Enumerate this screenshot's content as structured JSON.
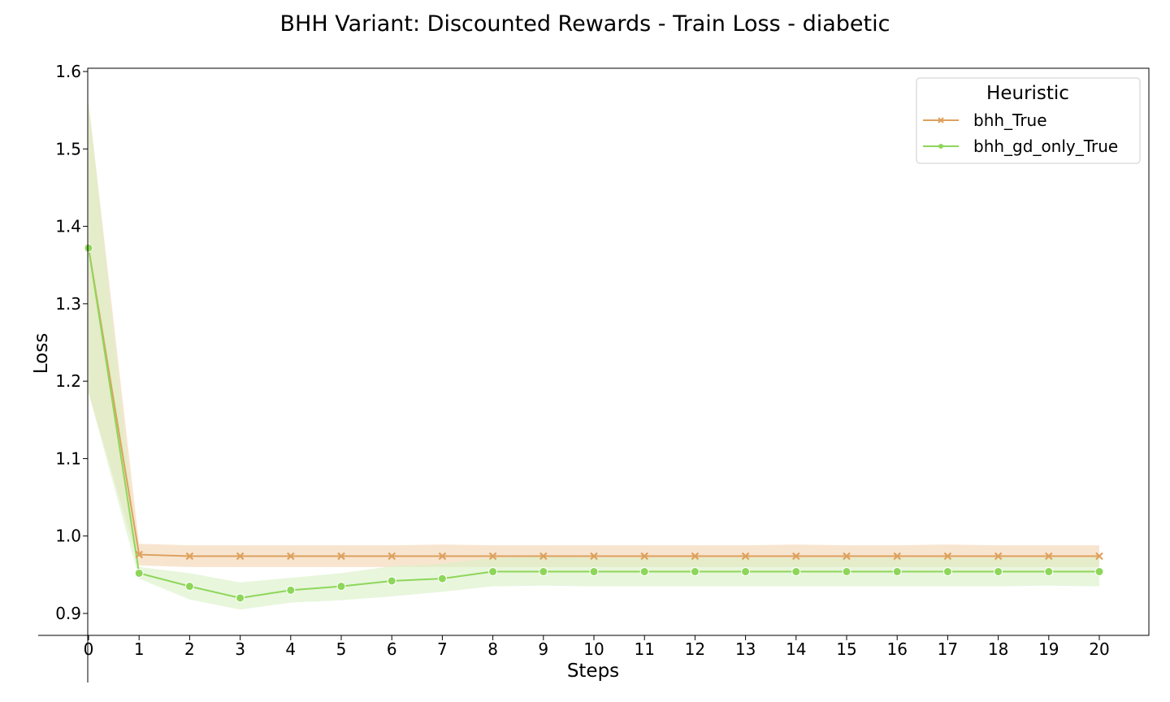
{
  "chart_data": {
    "type": "line",
    "title": "BHH Variant: Discounted Rewards - Train Loss - diabetic",
    "xlabel": "Steps",
    "ylabel": "Loss",
    "xlim": [
      0,
      20
    ],
    "ylim": [
      0.87,
      1.605
    ],
    "x_ticks": [
      0,
      1,
      2,
      3,
      4,
      5,
      6,
      7,
      8,
      9,
      10,
      11,
      12,
      13,
      14,
      15,
      16,
      17,
      18,
      19,
      20
    ],
    "y_ticks": [
      0.9,
      1.0,
      1.1,
      1.2,
      1.3,
      1.4,
      1.5,
      1.6
    ],
    "y_tick_labels": [
      "0.9",
      "1.0",
      "1.1",
      "1.2",
      "1.3",
      "1.4",
      "1.5",
      "1.6"
    ],
    "grid": false,
    "legend": {
      "title": "Heuristic",
      "placement": "top-right"
    },
    "x": [
      0,
      1,
      2,
      3,
      4,
      5,
      6,
      7,
      8,
      9,
      10,
      11,
      12,
      13,
      14,
      15,
      16,
      17,
      18,
      19,
      20
    ],
    "series": [
      {
        "name": "bhh_True",
        "marker": "x",
        "color": "#dda15e",
        "band_color": "#f5dcc0",
        "values": [
          1.372,
          0.976,
          0.974,
          0.974,
          0.974,
          0.974,
          0.974,
          0.974,
          0.974,
          0.974,
          0.974,
          0.974,
          0.974,
          0.974,
          0.974,
          0.974,
          0.974,
          0.974,
          0.974,
          0.974,
          0.974
        ],
        "lower": [
          1.185,
          0.962,
          0.96,
          0.96,
          0.96,
          0.96,
          0.96,
          0.96,
          0.96,
          0.96,
          0.96,
          0.96,
          0.96,
          0.96,
          0.96,
          0.96,
          0.96,
          0.96,
          0.96,
          0.96,
          0.96
        ],
        "upper": [
          1.56,
          0.99,
          0.988,
          0.988,
          0.988,
          0.988,
          0.988,
          0.989,
          0.988,
          0.988,
          0.988,
          0.988,
          0.988,
          0.988,
          0.989,
          0.988,
          0.988,
          0.989,
          0.988,
          0.988,
          0.988
        ]
      },
      {
        "name": "bhh_gd_only_True",
        "marker": "o",
        "color": "#8ed65a",
        "band_color": "#d8f0c4",
        "values": [
          1.372,
          0.952,
          0.935,
          0.92,
          0.93,
          0.935,
          0.942,
          0.945,
          0.954,
          0.954,
          0.954,
          0.954,
          0.954,
          0.954,
          0.954,
          0.954,
          0.954,
          0.954,
          0.954,
          0.954,
          0.954
        ],
        "lower": [
          1.185,
          0.945,
          0.918,
          0.905,
          0.914,
          0.917,
          0.922,
          0.928,
          0.935,
          0.936,
          0.935,
          0.935,
          0.935,
          0.935,
          0.935,
          0.935,
          0.935,
          0.935,
          0.935,
          0.936,
          0.935
        ],
        "upper": [
          1.56,
          0.96,
          0.952,
          0.94,
          0.946,
          0.952,
          0.961,
          0.964,
          0.972,
          0.973,
          0.972,
          0.972,
          0.972,
          0.972,
          0.972,
          0.972,
          0.972,
          0.972,
          0.972,
          0.972,
          0.972
        ]
      }
    ]
  }
}
